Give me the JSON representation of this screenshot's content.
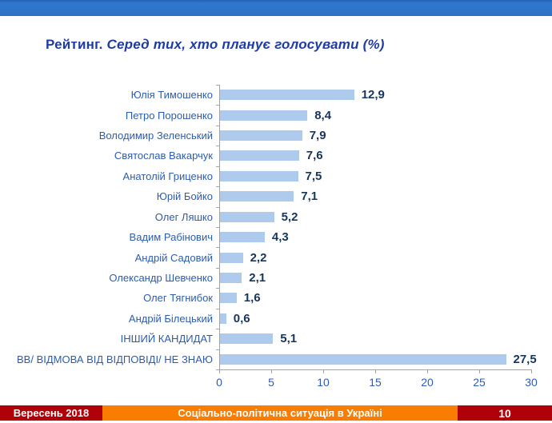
{
  "title": {
    "lead": "Рейтинг.",
    "subtitle": "Серед тих, хто планує голосувати (%)"
  },
  "chart_data": {
    "type": "bar",
    "orientation": "horizontal",
    "title": "Рейтинг. Серед тих, хто планує голосувати (%)",
    "xlabel": "",
    "ylabel": "",
    "xlim": [
      0,
      30
    ],
    "xticks": [
      0,
      5,
      10,
      15,
      20,
      25,
      30
    ],
    "grid": false,
    "legend": false,
    "bar_color": "#aecaec",
    "categories": [
      "Юлія Тимошенко",
      "Петро Порошенко",
      "Володимир Зеленський",
      "Святослав Вакарчук",
      "Анатолій Гриценко",
      "Юрій Бойко",
      "Олег Ляшко",
      "Вадим Рабінович",
      "Андрій Садовий",
      "Олександр Шевченко",
      "Олег Тягнибок",
      "Андрій Білецький",
      "ІНШИЙ КАНДИДАТ",
      "ВВ/ ВІДМОВА ВІД ВІДПОВІДІ/ НЕ ЗНАЮ"
    ],
    "values": [
      12.9,
      8.4,
      7.9,
      7.6,
      7.5,
      7.1,
      5.2,
      4.3,
      2.2,
      2.1,
      1.6,
      0.6,
      5.1,
      27.5
    ],
    "display_values": [
      "12,9",
      "8,4",
      "7,9",
      "7,6",
      "7,5",
      "7,1",
      "5,2",
      "4,3",
      "2,2",
      "2,1",
      "1,6",
      "0,6",
      "5,1",
      "27,5"
    ]
  },
  "colors": {
    "accent_strip": "#2e75c9",
    "title_text": "#1f3ca6",
    "category_text": "#2d5cae",
    "value_text": "#17365d",
    "bar_fill": "#aecaec",
    "axis_line": "#a3a3a3",
    "footer_red": "#b00008",
    "footer_orange": "#f97d00"
  },
  "footer": {
    "date": "Вересень 2018",
    "title": "Соціально-політична ситуація в Україні",
    "page": "10"
  }
}
